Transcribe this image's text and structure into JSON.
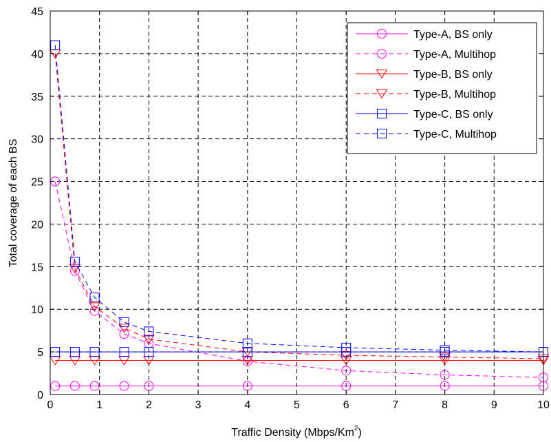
{
  "chart_data": {
    "type": "line",
    "xlabel": "Traffic Density (Mbps/Km",
    "xlabel_sup": "2",
    "ylabel": "Total coverage of each BS",
    "xlim": [
      0,
      10
    ],
    "ylim": [
      0,
      45
    ],
    "x_ticks": [
      "0",
      "1",
      "2",
      "3",
      "4",
      "5",
      "6",
      "7",
      "8",
      "9",
      "10"
    ],
    "y_ticks": [
      "0",
      "5",
      "10",
      "15",
      "20",
      "25",
      "30",
      "35",
      "40",
      "45"
    ],
    "grid": true,
    "legend_position": "top-right",
    "series": [
      {
        "name": "Type-A, BS only",
        "color": "#ff00ff",
        "dash": "solid",
        "marker": "circle",
        "x": [
          0.1,
          0.5,
          0.9,
          1.5,
          2,
          4,
          6,
          8,
          10
        ],
        "y": [
          1,
          1,
          1,
          1,
          1,
          1,
          1,
          1,
          1
        ]
      },
      {
        "name": "Type-A, Multihop",
        "color": "#ff00ff",
        "dash": "dashed",
        "marker": "circle",
        "x": [
          0.1,
          0.5,
          0.9,
          1.5,
          2,
          4,
          6,
          8,
          10
        ],
        "y": [
          25,
          14.5,
          9.8,
          7.1,
          6.0,
          3.9,
          2.8,
          2.3,
          2.0
        ]
      },
      {
        "name": "Type-B, BS only",
        "color": "#ff0000",
        "dash": "solid",
        "marker": "triangle-down",
        "x": [
          0.1,
          0.5,
          0.9,
          1.5,
          2,
          4,
          6,
          8,
          10
        ],
        "y": [
          4,
          4,
          4,
          4,
          4,
          4,
          4,
          4,
          4
        ]
      },
      {
        "name": "Type-B, Multihop",
        "color": "#ff0000",
        "dash": "dashed",
        "marker": "triangle-down",
        "x": [
          0.1,
          0.5,
          0.9,
          1.5,
          2,
          4,
          6,
          8,
          10
        ],
        "y": [
          40,
          14.8,
          10.3,
          7.8,
          6.5,
          5.0,
          4.6,
          4.4,
          4.2
        ]
      },
      {
        "name": "Type-C, BS only",
        "color": "#0000ff",
        "dash": "solid",
        "marker": "square",
        "x": [
          0.1,
          0.5,
          0.9,
          1.5,
          2,
          4,
          6,
          8,
          10
        ],
        "y": [
          5,
          5,
          5,
          5,
          5,
          5,
          5,
          5,
          5
        ]
      },
      {
        "name": "Type-C, Multihop",
        "color": "#0000ff",
        "dash": "dashed",
        "marker": "square",
        "x": [
          0.1,
          0.5,
          0.9,
          1.5,
          2,
          4,
          6,
          8,
          10
        ],
        "y": [
          41,
          15.6,
          11.4,
          8.5,
          7.4,
          6.0,
          5.5,
          5.2,
          5.0
        ]
      }
    ]
  }
}
